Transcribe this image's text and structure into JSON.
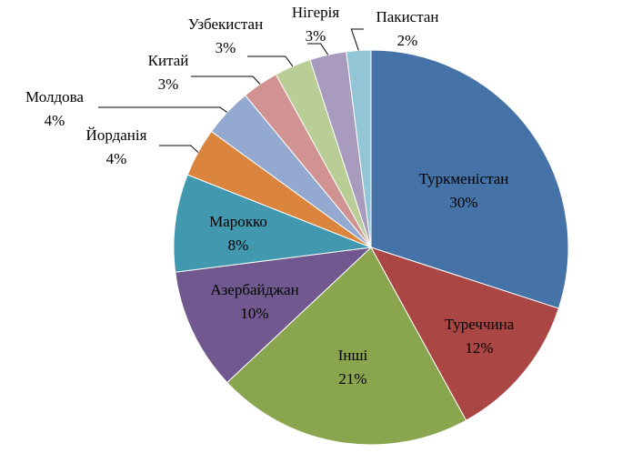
{
  "chart_data": {
    "type": "pie",
    "categories": [
      "Туркменістан",
      "Туреччина",
      "Інші",
      "Азербайджан",
      "Марокко",
      "Йорданія",
      "Молдова",
      "Китай",
      "Узбекистан",
      "Нігерія",
      "Пакистан"
    ],
    "values": [
      30,
      12,
      21,
      10,
      8,
      4,
      4,
      3,
      3,
      3,
      2
    ],
    "value_labels": [
      "30%",
      "12%",
      "21%",
      "10%",
      "8%",
      "4%",
      "4%",
      "3%",
      "3%",
      "3%",
      "2%"
    ],
    "colors": [
      "#4572a7",
      "#aa4643",
      "#89a54e",
      "#71588f",
      "#4198af",
      "#db843d",
      "#93a9cf",
      "#d19392",
      "#b9cd96",
      "#a99bbd",
      "#92c5d6"
    ]
  }
}
